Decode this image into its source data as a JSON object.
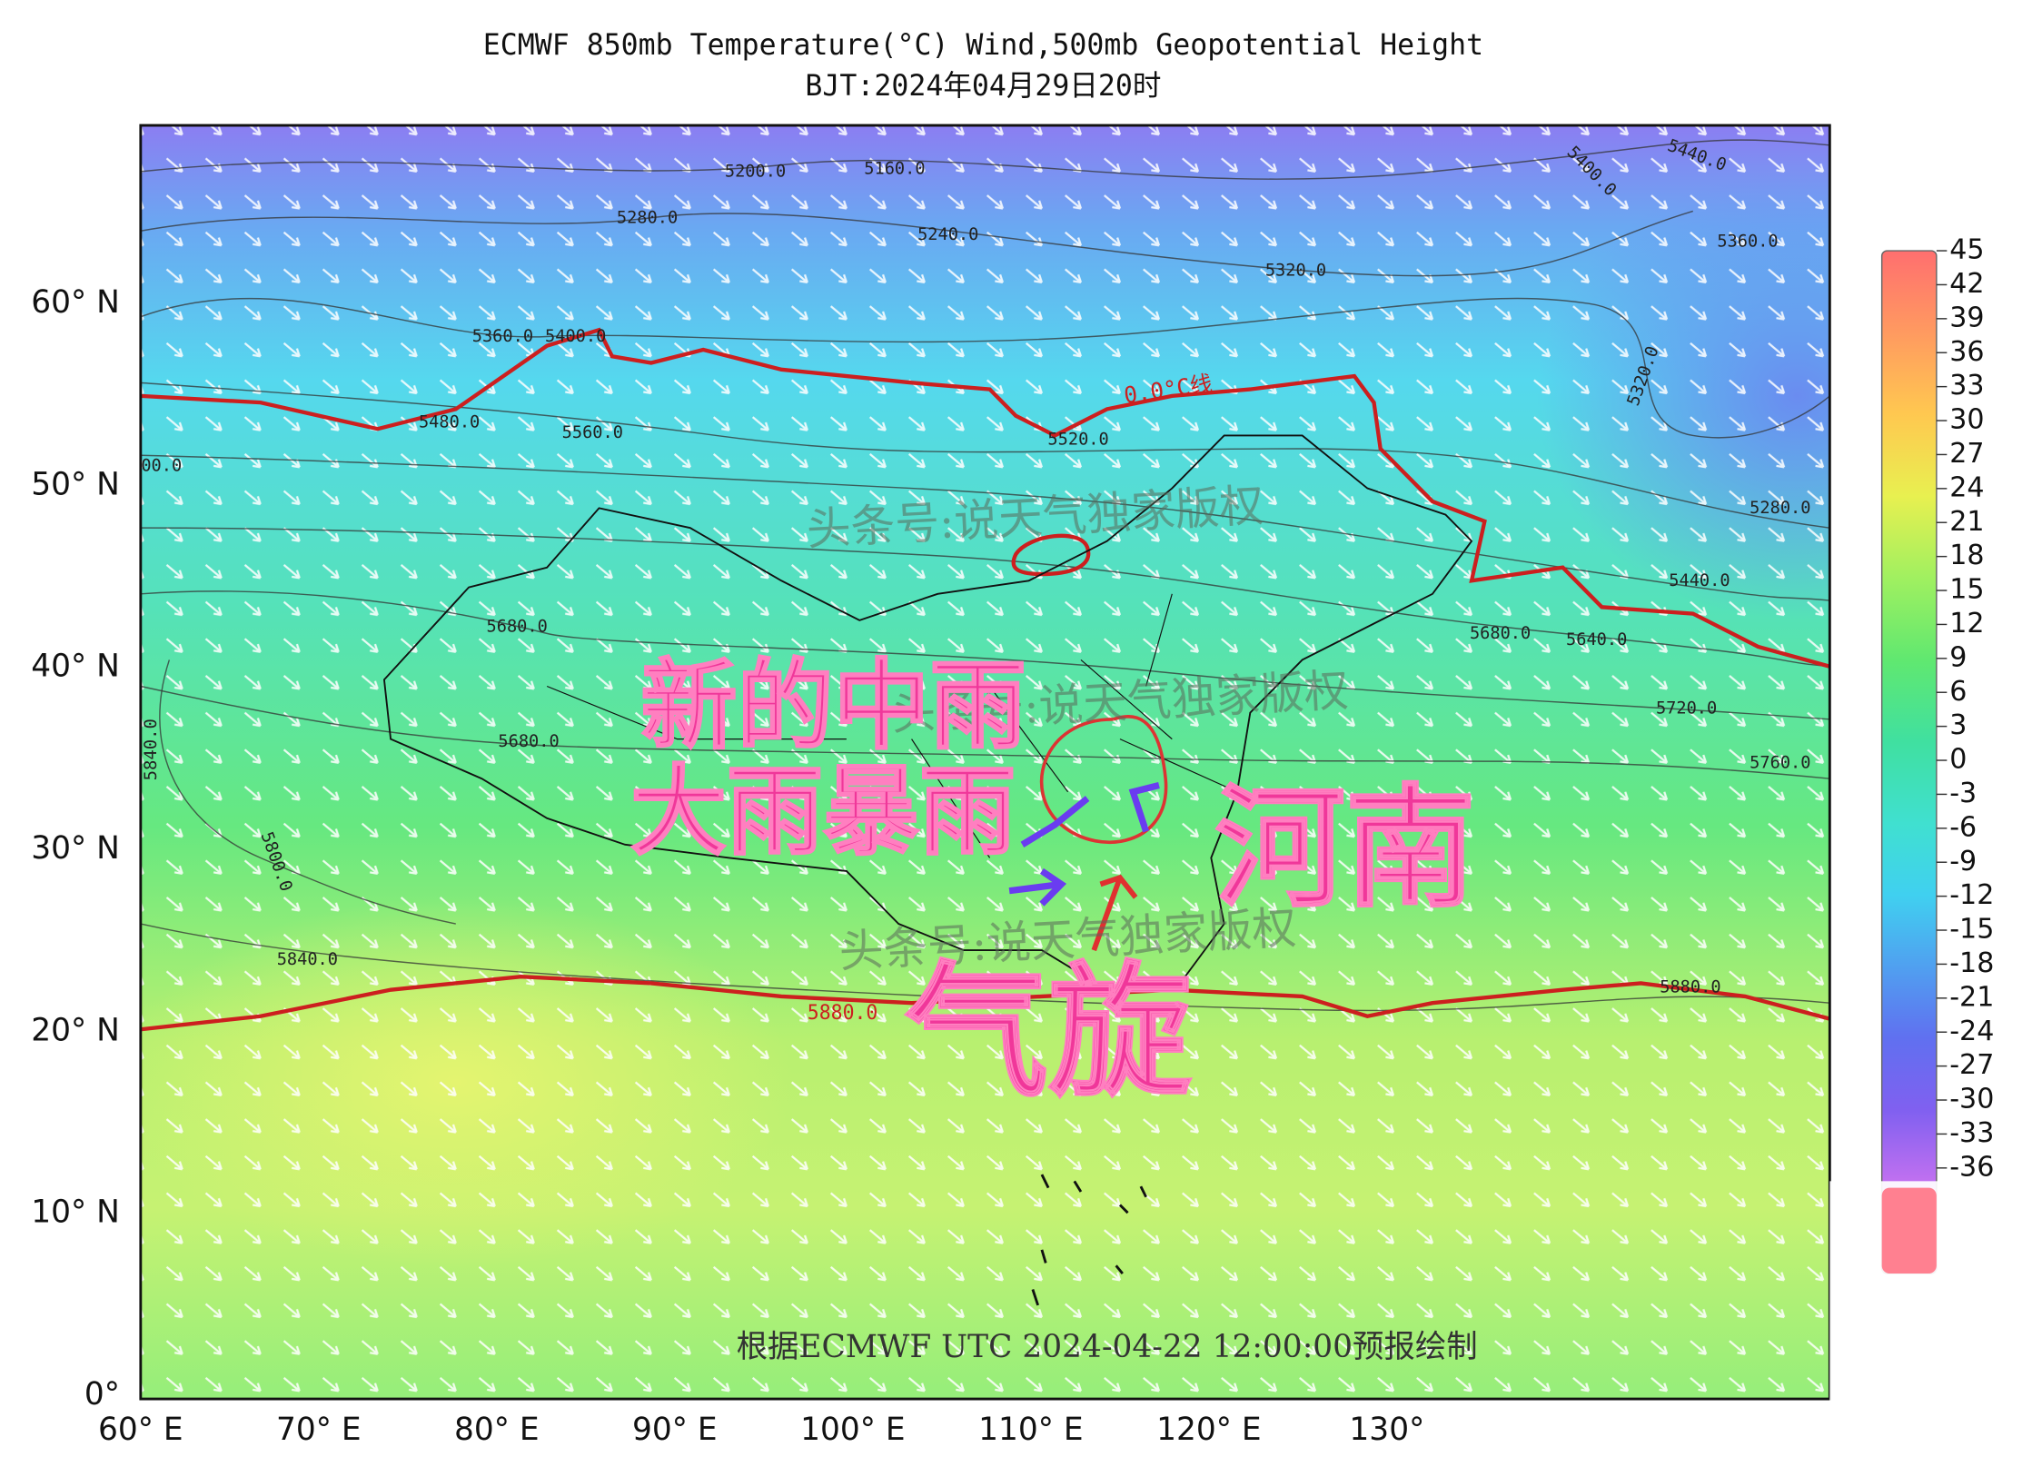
{
  "header": {
    "title": "ECMWF 850mb Temperature(°C) Wind,500mb Geopotential Height",
    "subtitle": "BJT:2024年04月29日20时"
  },
  "y_axis_labels": [
    "60° N",
    "50° N",
    "40° N",
    "30° N",
    "20° N",
    "10° N",
    "0°"
  ],
  "x_axis_labels": [
    "60° E",
    "70° E",
    "80° E",
    "90° E",
    "100° E",
    "110° E",
    "120° E",
    "130°"
  ],
  "colorbar_labels": [
    45,
    42,
    39,
    36,
    33,
    30,
    27,
    24,
    21,
    18,
    15,
    12,
    9,
    6,
    3,
    0,
    -3,
    -6,
    -9,
    -12,
    -15,
    -18,
    -21,
    -24,
    -27,
    -30,
    -33,
    -36
  ],
  "contour_labels": [
    "5200.0",
    "5160.0",
    "5280.0",
    "5240.0",
    "5320.0",
    "5400.0",
    "5440.0",
    "5360.0",
    "5320.0",
    "5280.0",
    "5440.0",
    "5360.0",
    "5400.0",
    "5480.0",
    "5560.0",
    "5520.0",
    "00.0",
    "5640.0",
    "5680.0",
    "5680.0",
    "5720.0",
    "5760.0",
    "5680.0",
    "5840.0",
    "5800.0",
    "5840.0",
    "5880.0"
  ],
  "red_line_labels": [
    "0.0°C线",
    "5880.0"
  ],
  "annotations": [
    "新的中雨",
    "大雨暴雨",
    "河南",
    "气旋"
  ],
  "watermarks": [
    "头条号:说天气独家版权",
    "头条号:说天气独家版权",
    "头条号:说天气独家版权"
  ],
  "footer": "根据ECMWF UTC 2024-04-22 12:00:00预报绘制"
}
